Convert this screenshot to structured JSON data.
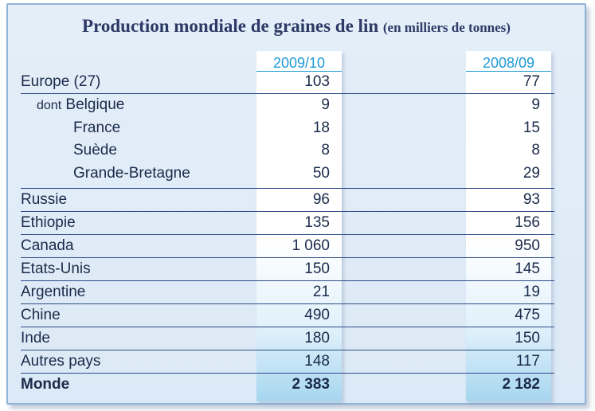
{
  "title": "Production mondiale de graines de lin",
  "unit": "(en milliers de tonnes)",
  "columns": [
    "2009/10",
    "2008/09"
  ],
  "rows": [
    {
      "label": "Europe (27)",
      "v1": "103",
      "v2": "77"
    },
    {
      "prefix": "dont",
      "label": "Belgique",
      "v1": "9",
      "v2": "9"
    },
    {
      "label": "France",
      "v1": "18",
      "v2": "15"
    },
    {
      "label": "Suède",
      "v1": "8",
      "v2": "8"
    },
    {
      "label": "Grande-Bretagne",
      "v1": "50",
      "v2": "29"
    },
    {
      "label": "Russie",
      "v1": "96",
      "v2": "93"
    },
    {
      "label": "Ethiopie",
      "v1": "135",
      "v2": "156"
    },
    {
      "label": "Canada",
      "v1": "1 060",
      "v2": "950"
    },
    {
      "label": "Etats-Unis",
      "v1": "150",
      "v2": "145"
    },
    {
      "label": "Argentine",
      "v1": "21",
      "v2": "19"
    },
    {
      "label": "Chine",
      "v1": "490",
      "v2": "475"
    },
    {
      "label": "Inde",
      "v1": "180",
      "v2": "150"
    },
    {
      "label": "Autres pays",
      "v1": "148",
      "v2": "117"
    },
    {
      "label": "Monde",
      "v1": "2 383",
      "v2": "2 182"
    }
  ]
}
